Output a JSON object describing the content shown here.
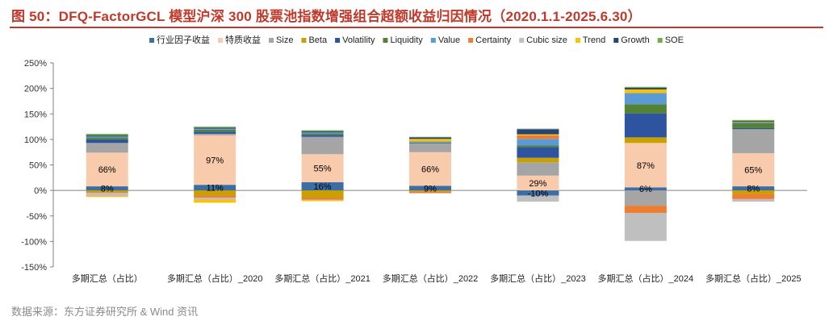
{
  "figure": {
    "title": "图 50：DFQ-FactorGCL 模型沪深 300 股票池指数增强组合超额收益归因情况（2020.1.1-2025.6.30）",
    "source": "数据来源：东方证券研究所 & Wind 资讯"
  },
  "chart_data": {
    "type": "bar",
    "stacked": true,
    "title": "",
    "xlabel": "",
    "ylabel": "",
    "ylim": [
      -1.5,
      2.5
    ],
    "yticks": [
      -1.5,
      -1.0,
      -0.5,
      0,
      0.5,
      1.0,
      1.5,
      2.0,
      2.5
    ],
    "ytick_labels": [
      "-150%",
      "-100%",
      "-50%",
      "0%",
      "50%",
      "100%",
      "150%",
      "200%",
      "250%"
    ],
    "legend_position": "top",
    "categories": [
      "多期汇总（占比）",
      "多期汇总（占比）_2020",
      "多期汇总（占比）_2021",
      "多期汇总（占比）_2022",
      "多期汇总（占比）_2023",
      "多期汇总（占比）_2024",
      "多期汇总（占比）_2025"
    ],
    "series": [
      {
        "name": "行业因子收益",
        "color": "#3b6ea5",
        "values": [
          0.08,
          0.11,
          0.16,
          0.09,
          -0.1,
          0.06,
          0.08
        ],
        "labels": [
          "8%",
          "11%",
          "16%",
          "9%",
          "-10%",
          "6%",
          "8%"
        ]
      },
      {
        "name": "特质收益",
        "color": "#f8cbad",
        "values": [
          0.66,
          0.97,
          0.55,
          0.66,
          0.29,
          0.87,
          0.65
        ],
        "labels": [
          "66%",
          "97%",
          "55%",
          "66%",
          "29%",
          "87%",
          "65%"
        ]
      },
      {
        "name": "Size",
        "color": "#a5a5a5",
        "values": [
          0.19,
          0.03,
          0.34,
          0.17,
          0.26,
          -0.3,
          0.47
        ]
      },
      {
        "name": "Beta",
        "color": "#c9a000",
        "values": [
          -0.03,
          -0.1,
          -0.14,
          -0.02,
          0.09,
          0.11,
          -0.07
        ]
      },
      {
        "name": "Volatility",
        "color": "#2e549f",
        "values": [
          0.07,
          0.04,
          0.04,
          0.01,
          0.21,
          0.47,
          0.02
        ]
      },
      {
        "name": "Liquidity",
        "color": "#548235",
        "values": [
          0.04,
          0.04,
          0.03,
          0.01,
          0.03,
          0.18,
          0.1
        ]
      },
      {
        "name": "Value",
        "color": "#5b9bd5",
        "values": [
          0.02,
          0.02,
          0.02,
          0.02,
          0.13,
          0.22,
          0.01
        ]
      },
      {
        "name": "Certainty",
        "color": "#ed7d31",
        "values": [
          -0.02,
          -0.04,
          -0.04,
          -0.03,
          0.07,
          -0.14,
          -0.1
        ]
      },
      {
        "name": "Cubic size",
        "color": "#bfbfbf",
        "values": [
          -0.06,
          -0.04,
          -0.01,
          -0.01,
          -0.12,
          -0.55,
          -0.05
        ]
      },
      {
        "name": "Trend",
        "color": "#ffc000",
        "values": [
          -0.02,
          -0.06,
          -0.02,
          0.05,
          0.02,
          0.07,
          0.01
        ]
      },
      {
        "name": "Growth",
        "color": "#264478",
        "values": [
          0.02,
          0.02,
          0.02,
          0.03,
          0.1,
          0.03,
          0.02
        ]
      },
      {
        "name": "SOE",
        "color": "#70ad47",
        "values": [
          0.03,
          0.02,
          0.02,
          0.01,
          0.01,
          0.02,
          0.02
        ]
      }
    ]
  }
}
